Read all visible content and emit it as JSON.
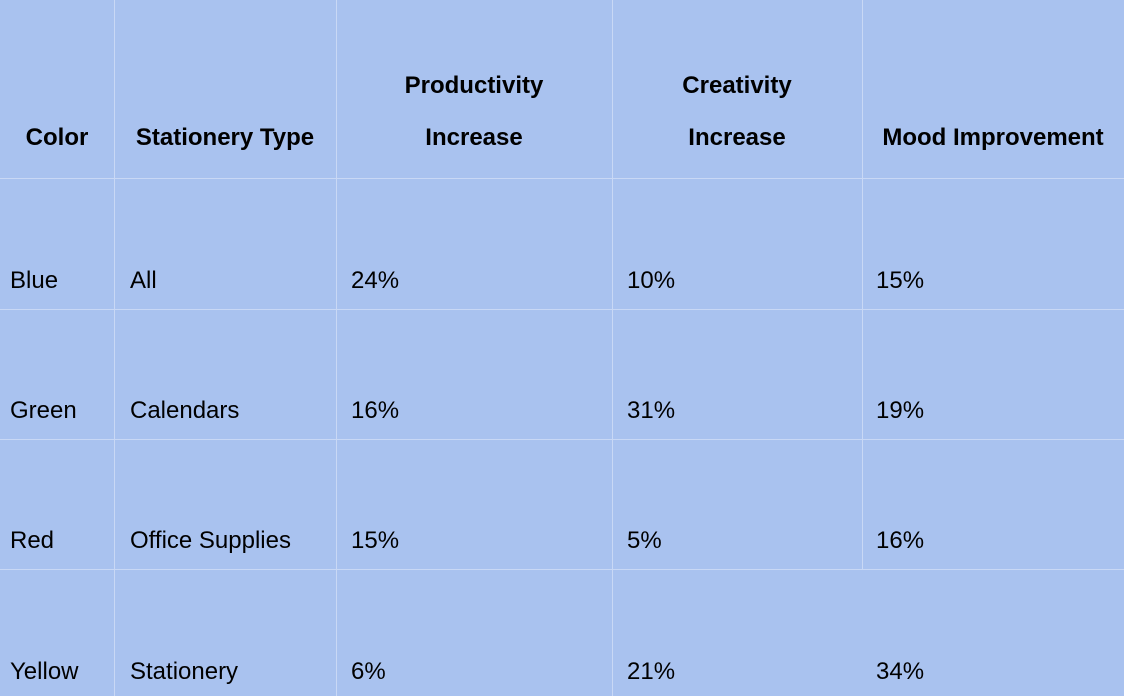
{
  "table": {
    "headers": [
      {
        "line1": "",
        "line2": "Color"
      },
      {
        "line1": "",
        "line2": "Stationery Type"
      },
      {
        "line1": "Productivity",
        "line2": "Increase"
      },
      {
        "line1": "Creativity",
        "line2": "Increase"
      },
      {
        "line1": "",
        "line2": "Mood Improvement"
      }
    ],
    "rows": [
      [
        "Blue",
        "All",
        "24%",
        "10%",
        "15%"
      ],
      [
        "Green",
        "Calendars",
        "16%",
        "31%",
        "19%"
      ],
      [
        "Red",
        "Office Supplies",
        "15%",
        "5%",
        "16%"
      ],
      [
        "Yellow",
        "Stationery",
        "6%",
        "21%",
        "34%"
      ]
    ]
  }
}
